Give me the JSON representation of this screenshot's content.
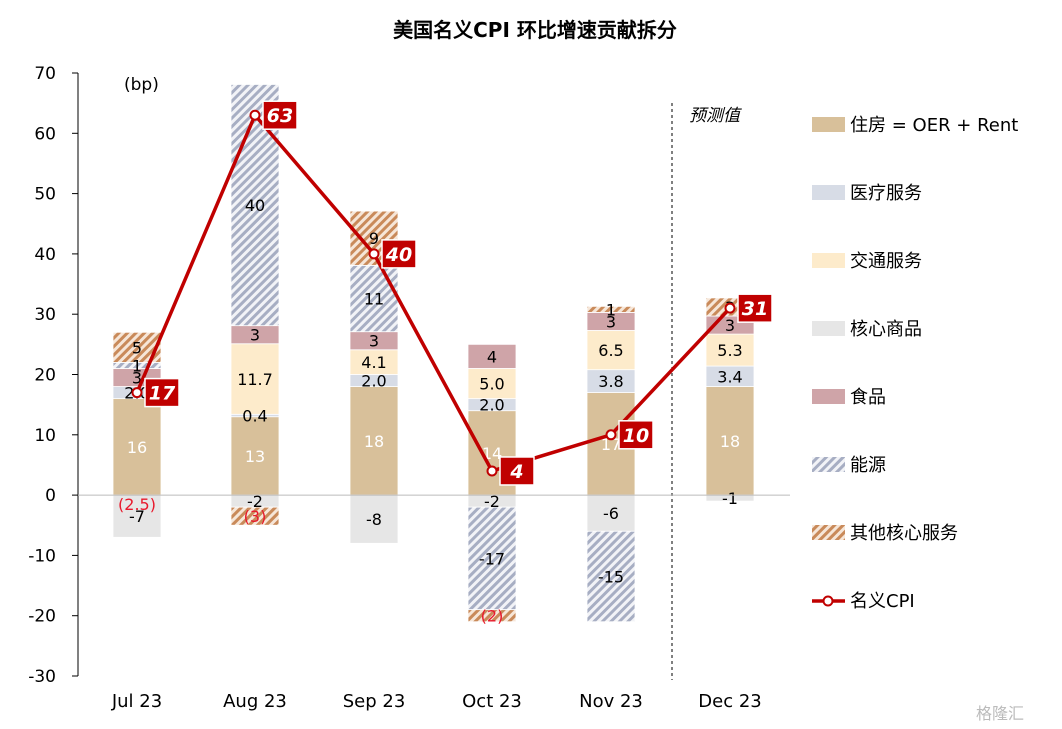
{
  "chart_data": {
    "type": "bar",
    "stacked": true,
    "title": "美国名义CPI 环比增速贡献拆分",
    "unit_label": "(bp)",
    "forecast_label": "预测值",
    "ylim": [
      -30,
      70
    ],
    "yticks": [
      -30,
      -20,
      -10,
      0,
      10,
      20,
      30,
      40,
      50,
      60,
      70
    ],
    "categories": [
      "Jul 23",
      "Aug 23",
      "Sep 23",
      "Oct 23",
      "Nov 23",
      "Dec 23"
    ],
    "series": [
      {
        "key": "housing",
        "name": "住房 = OER + Rent",
        "color": "#D8C09A",
        "pattern": "solid",
        "values": [
          16,
          13,
          18,
          14,
          17,
          18
        ],
        "labels": [
          "16",
          "13",
          "18",
          "14",
          "17",
          "18"
        ],
        "label_color": "#ffffff"
      },
      {
        "key": "medical",
        "name": "医疗服务",
        "color": "#D7DCE6",
        "pattern": "solid",
        "values": [
          2.0,
          0.4,
          2.0,
          2.0,
          3.8,
          3.4
        ],
        "labels": [
          "2.0",
          "0.4",
          "2.0",
          "2.0",
          "3.8",
          "3.4"
        ],
        "label_color": "#000000"
      },
      {
        "key": "transport",
        "name": "交通服务",
        "color": "#FDEBCB",
        "pattern": "solid",
        "values": [
          0,
          11.7,
          4.1,
          5.0,
          6.5,
          5.3
        ],
        "labels": [
          "",
          "11.7",
          "4.1",
          "5.0",
          "6.5",
          "5.3"
        ],
        "label_color": "#000000"
      },
      {
        "key": "core_goods",
        "name": "核心商品",
        "color": "#E6E6E6",
        "pattern": "solid",
        "values": [
          -7,
          -2,
          -8,
          -2,
          -6,
          -1
        ],
        "labels": [
          "-7",
          "-2",
          "-8",
          "-2",
          "-6",
          "-1"
        ],
        "label_color": "#000000"
      },
      {
        "key": "food",
        "name": "食品",
        "color": "#CFA4A8",
        "pattern": "solid",
        "values": [
          3,
          3,
          3,
          4,
          3,
          3
        ],
        "labels": [
          "3",
          "3",
          "3",
          "4",
          "3",
          "3"
        ],
        "label_color": "#000000"
      },
      {
        "key": "energy",
        "name": "能源",
        "color": "#A7AEC3",
        "pattern": "stripe",
        "values": [
          1,
          40,
          11,
          -17,
          -15,
          0
        ],
        "labels": [
          "1",
          "40",
          "11",
          "-17",
          "-15",
          "0"
        ],
        "label_color": "#000000"
      },
      {
        "key": "other_core",
        "name": "其他核心服务",
        "color": "#C98A5A",
        "pattern": "stripe",
        "values": [
          5,
          -3,
          9,
          -2,
          1,
          3
        ],
        "labels": [
          "5",
          "(3)",
          "9",
          "(2)",
          "1",
          "3"
        ],
        "label_color": "#000000"
      }
    ],
    "line": {
      "name": "名义CPI",
      "color": "#C00000",
      "values": [
        17,
        63,
        40,
        4,
        10,
        31
      ],
      "labels": [
        "17",
        "63",
        "40",
        "4",
        "10",
        "31"
      ]
    },
    "extra_labels": [
      {
        "category": "Jul 23",
        "text": "(2.5)",
        "color": "#E8192C"
      }
    ],
    "grid": false,
    "legend_position": "right"
  },
  "watermark": "格隆汇"
}
